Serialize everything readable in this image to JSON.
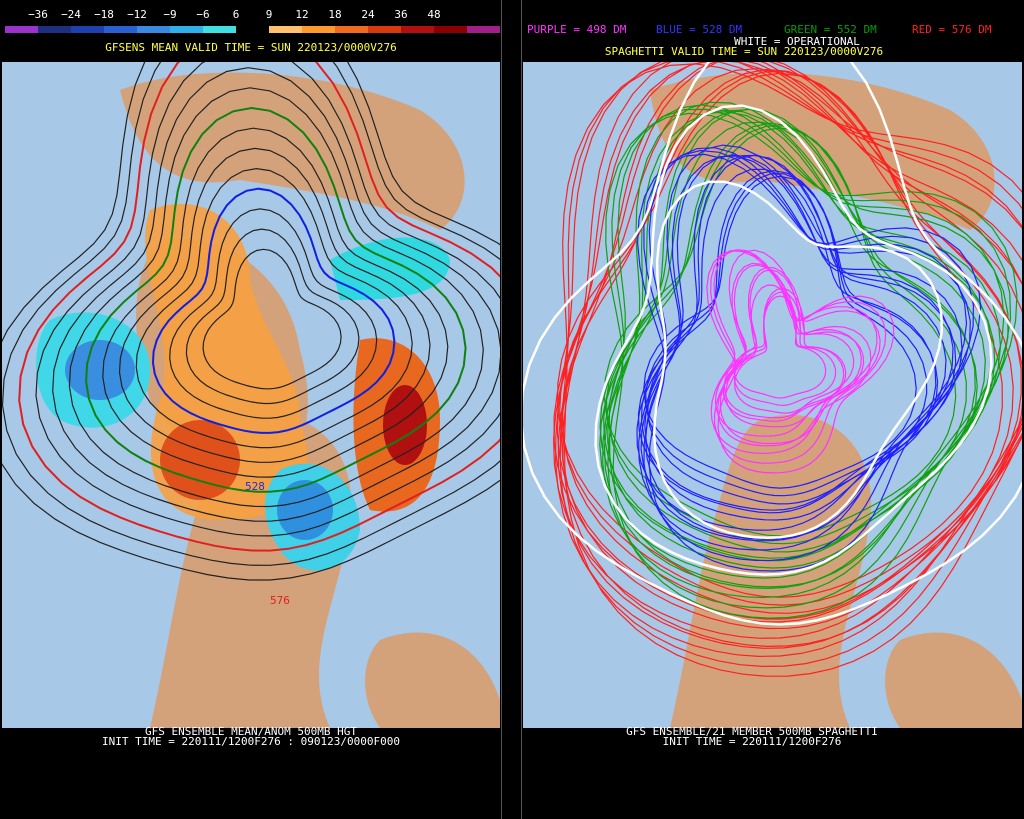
{
  "left_panel": {
    "colorbar": {
      "labels": [
        "−36",
        "−24",
        "−18",
        "−12",
        "−9",
        "−6",
        "6",
        "9",
        "12",
        "18",
        "24",
        "36",
        "48"
      ]
    },
    "title": "GFSENS MEAN VALID TIME = SUN 220123/0000V276",
    "contour_labels": [
      "528",
      "576"
    ],
    "footer": {
      "line1": "GFS ENSEMBLE MEAN/ANOM 500MB HGT",
      "line2": "INIT TIME = 220111/1200F276 : 090123/0000F000"
    }
  },
  "right_panel": {
    "legend": [
      "PURPLE = 498 DM",
      "BLUE = 528 DM",
      "GREEN = 552 DM",
      "RED = 576 DM"
    ],
    "operational": "WHITE = OPERATIONAL",
    "title": "SPAGHETTI VALID TIME = SUN 220123/0000V276",
    "footer": {
      "line1": "GFS ENSEMBLE/21 MEMBER 500MB SPAGHETTI",
      "line2": "INIT TIME = 220111/1200F276"
    }
  }
}
